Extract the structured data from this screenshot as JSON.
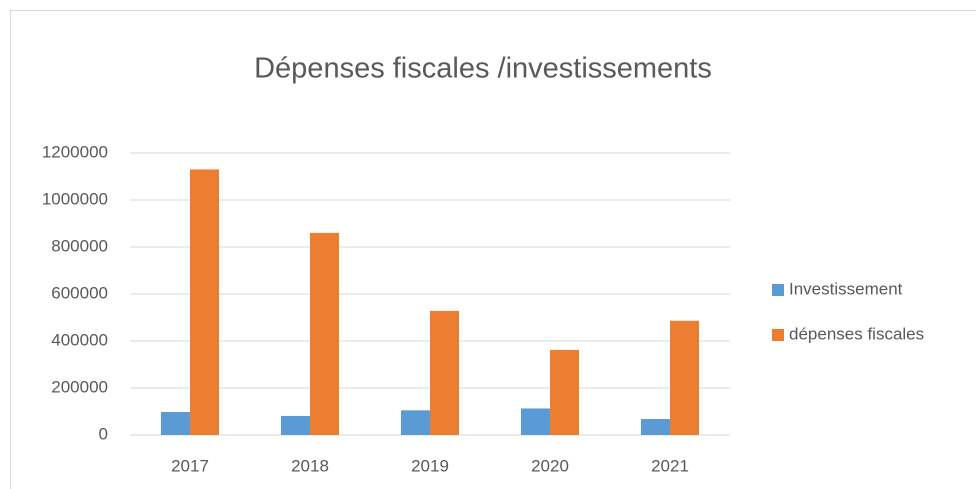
{
  "chart_data": {
    "type": "bar",
    "title": "Dépenses fiscales /investissements",
    "categories": [
      "2017",
      "2018",
      "2019",
      "2020",
      "2021"
    ],
    "series": [
      {
        "name": "Investissement",
        "color": "#5b9bd5",
        "values": [
          98000,
          81000,
          105000,
          113000,
          68000
        ]
      },
      {
        "name": "dépenses fiscales",
        "color": "#ed7d31",
        "values": [
          1130000,
          860000,
          528000,
          362000,
          486000
        ]
      }
    ],
    "ylim": [
      0,
      1200000
    ],
    "yticks": [
      0,
      200000,
      400000,
      600000,
      800000,
      1000000,
      1200000
    ],
    "grid": true,
    "legend": "right"
  }
}
